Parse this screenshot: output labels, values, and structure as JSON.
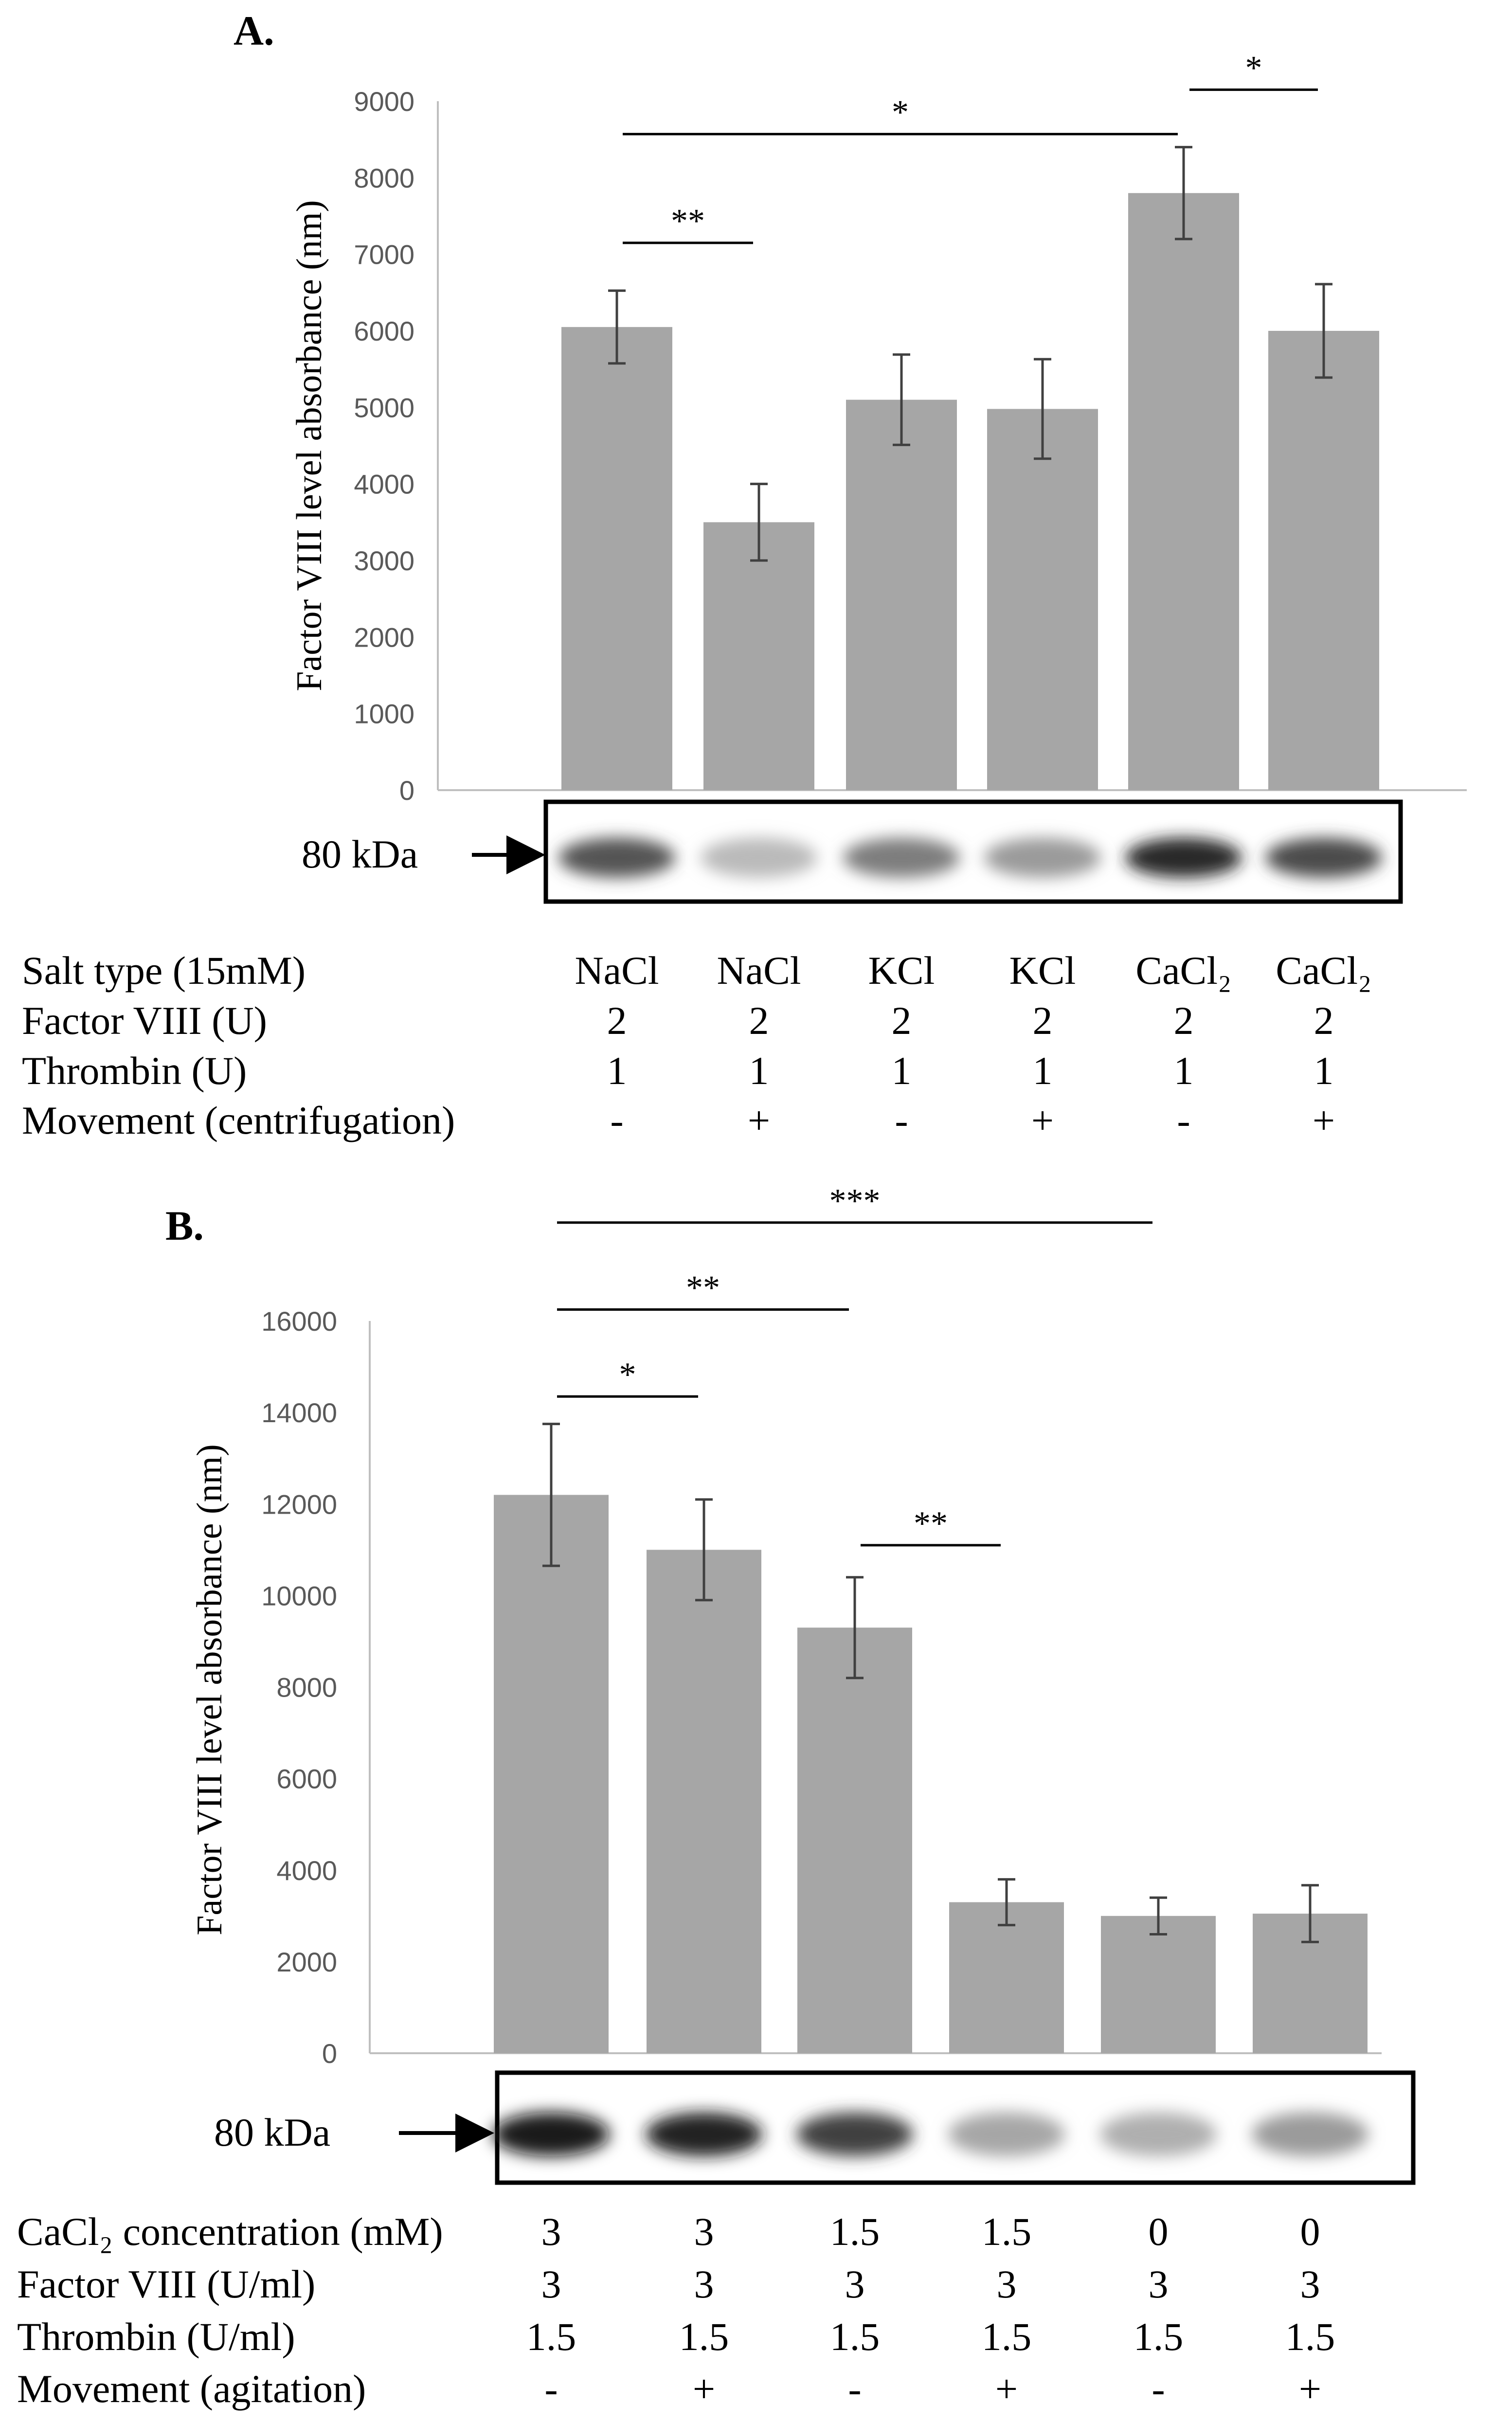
{
  "chart_data": [
    {
      "panel": "A.",
      "type": "bar",
      "ylabel": "Factor VIII level absorbance (nm)",
      "ylim": [
        0,
        9000
      ],
      "yticks": [
        0,
        1000,
        2000,
        3000,
        4000,
        5000,
        6000,
        7000,
        8000,
        9000
      ],
      "values": [
        6050,
        3500,
        5100,
        4980,
        7800,
        6000
      ],
      "errors": [
        475,
        500,
        590,
        650,
        600,
        610
      ],
      "significance": [
        {
          "from": 0,
          "to": 1,
          "label": "**",
          "level": 7150
        },
        {
          "from": 0,
          "to": 4,
          "label": "*",
          "level": 8570
        },
        {
          "from": 4,
          "to": 5,
          "label": "*",
          "level": 9150
        }
      ],
      "blot": {
        "label": "80 kDa",
        "intensities": [
          0.7,
          0.2,
          0.5,
          0.35,
          0.9,
          0.75
        ]
      },
      "conditions": [
        {
          "label": "Salt type (15mM)",
          "values": [
            "NaCl",
            "NaCl",
            "KCl",
            "KCl",
            "CaCl₂",
            "CaCl₂"
          ]
        },
        {
          "label": "Factor VIII (U)",
          "values": [
            "2",
            "2",
            "2",
            "2",
            "2",
            "2"
          ]
        },
        {
          "label": "Thrombin (U)",
          "values": [
            "1",
            "1",
            "1",
            "1",
            "1",
            "1"
          ]
        },
        {
          "label": "Movement (centrifugation)",
          "values": [
            "-",
            "+",
            "-",
            "+",
            "-",
            "+"
          ]
        }
      ]
    },
    {
      "panel": "B.",
      "type": "bar",
      "ylabel": "Factor VIII level absorbance (nm)",
      "ylim": [
        0,
        16000
      ],
      "yticks": [
        0,
        2000,
        4000,
        6000,
        8000,
        10000,
        12000,
        14000,
        16000
      ],
      "values": [
        12200,
        11000,
        9300,
        3300,
        3000,
        3050
      ],
      "errors": [
        1550,
        1100,
        1100,
        500,
        400,
        620
      ],
      "significance": [
        {
          "from": 0,
          "to": 1,
          "label": "*",
          "level": 14350
        },
        {
          "from": 0,
          "to": 2,
          "label": "**",
          "level": 16250
        },
        {
          "from": 0,
          "to": 4,
          "label": "***",
          "level": 18150
        },
        {
          "from": 2,
          "to": 3,
          "label": "**",
          "level": 11100
        }
      ],
      "blot": {
        "label": "80 kDa",
        "intensities": [
          1.0,
          0.95,
          0.8,
          0.3,
          0.25,
          0.35
        ]
      },
      "conditions": [
        {
          "label": "CaCl₂ concentration (mM)",
          "values": [
            "3",
            "3",
            "1.5",
            "1.5",
            "0",
            "0"
          ]
        },
        {
          "label": "Factor VIII (U/ml)",
          "values": [
            "3",
            "3",
            "3",
            "3",
            "3",
            "3"
          ]
        },
        {
          "label": "Thrombin (U/ml)",
          "values": [
            "1.5",
            "1.5",
            "1.5",
            "1.5",
            "1.5",
            "1.5"
          ]
        },
        {
          "label": "Movement (agitation)",
          "values": [
            "-",
            "+",
            "-",
            "+",
            "-",
            "+"
          ]
        }
      ]
    }
  ]
}
